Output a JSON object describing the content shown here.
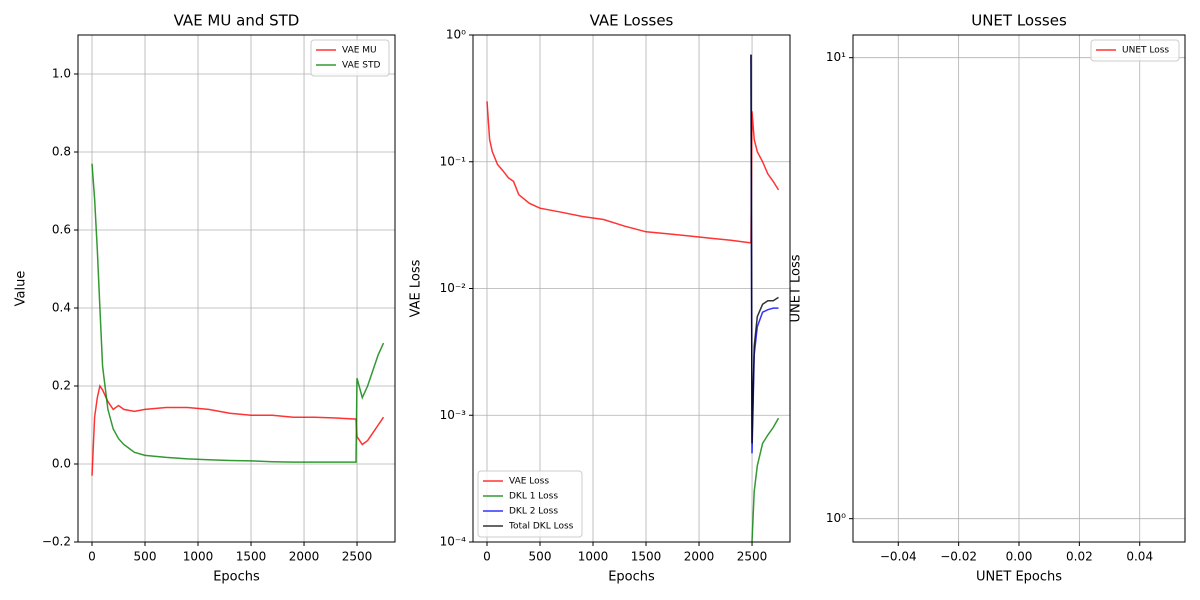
{
  "chart_data": [
    {
      "type": "line",
      "title": "VAE MU and STD",
      "x_label": "Epochs",
      "y_label": "Value",
      "x": [
        0,
        25,
        50,
        75,
        100,
        150,
        200,
        250,
        300,
        400,
        500,
        700,
        900,
        1100,
        1300,
        1500,
        1700,
        1900,
        2100,
        2300,
        2490,
        2500,
        2550,
        2600,
        2650,
        2700,
        2750
      ],
      "series": [
        {
          "name": "VAE MU",
          "color": "#ff0000",
          "values": [
            -0.03,
            0.12,
            0.17,
            0.2,
            0.19,
            0.16,
            0.14,
            0.15,
            0.14,
            0.135,
            0.14,
            0.145,
            0.145,
            0.14,
            0.13,
            0.125,
            0.125,
            0.12,
            0.12,
            0.118,
            0.115,
            0.07,
            0.05,
            0.06,
            0.08,
            0.1,
            0.12
          ]
        },
        {
          "name": "VAE STD",
          "color": "#008000",
          "values": [
            0.77,
            0.68,
            0.55,
            0.4,
            0.25,
            0.14,
            0.09,
            0.065,
            0.05,
            0.03,
            0.022,
            0.017,
            0.013,
            0.011,
            0.009,
            0.008,
            0.006,
            0.005,
            0.005,
            0.005,
            0.005,
            0.22,
            0.17,
            0.2,
            0.24,
            0.28,
            0.31
          ]
        }
      ],
      "xlim": [
        -132,
        2858
      ],
      "xticks": [
        0,
        500,
        1000,
        1500,
        2000,
        2500
      ],
      "ylim": [
        -0.2,
        1.1
      ],
      "yticks": [
        {
          "value": -0.2,
          "label": "−0.2"
        },
        {
          "value": 0,
          "label": "0.0"
        },
        {
          "value": 0.2,
          "label": "0.2"
        },
        {
          "value": 0.4,
          "label": "0.4"
        },
        {
          "value": 0.6,
          "label": "0.6"
        },
        {
          "value": 0.8,
          "label": "0.8"
        },
        {
          "value": 1,
          "label": "1.0"
        }
      ],
      "grid": true,
      "legend": "upper right"
    },
    {
      "type": "line",
      "title": "VAE Losses",
      "x_label": "Epochs",
      "y_label": "VAE Loss",
      "log_y": true,
      "x": [
        0,
        25,
        50,
        100,
        150,
        200,
        250,
        300,
        400,
        500,
        700,
        900,
        1100,
        1300,
        1500,
        1700,
        1900,
        2100,
        2300,
        2480,
        2490,
        2500,
        2520,
        2550,
        2600,
        2650,
        2700,
        2750
      ],
      "series": [
        {
          "name": "VAE Loss",
          "color": "#ff0000",
          "values": [
            0.3,
            0.15,
            0.12,
            0.095,
            0.085,
            0.075,
            0.07,
            0.055,
            0.047,
            0.043,
            0.04,
            0.037,
            0.035,
            0.031,
            0.028,
            0.027,
            0.026,
            0.025,
            0.024,
            0.023,
            0.023,
            0.25,
            0.15,
            0.12,
            0.1,
            0.08,
            0.07,
            0.06
          ]
        },
        {
          "name": "DKL 1 Loss",
          "color": "#008000",
          "values": [
            null,
            null,
            null,
            null,
            null,
            null,
            null,
            null,
            null,
            null,
            null,
            null,
            null,
            null,
            null,
            null,
            null,
            null,
            null,
            null,
            null,
            0.0001,
            0.00025,
            0.0004,
            0.0006,
            0.0007,
            0.0008,
            0.00095
          ]
        },
        {
          "name": "DKL 2 Loss",
          "color": "#0000ff",
          "values": [
            null,
            null,
            null,
            null,
            null,
            null,
            null,
            null,
            null,
            null,
            null,
            null,
            null,
            null,
            null,
            null,
            null,
            null,
            null,
            null,
            0.7,
            0.0005,
            0.003,
            0.005,
            0.0065,
            0.0068,
            0.007,
            0.007
          ]
        },
        {
          "name": "Total DKL Loss",
          "color": "#000000",
          "values": [
            null,
            null,
            null,
            null,
            null,
            null,
            null,
            null,
            null,
            null,
            null,
            null,
            null,
            null,
            null,
            null,
            null,
            null,
            null,
            null,
            0.7,
            0.0006,
            0.0035,
            0.006,
            0.0075,
            0.008,
            0.008,
            0.0085
          ]
        }
      ],
      "xlim": [
        -132,
        2858
      ],
      "xticks": [
        0,
        500,
        1000,
        1500,
        2000,
        2500
      ],
      "ylim": [
        0.0001,
        1
      ],
      "yticks": [
        {
          "value": 0.0001,
          "label": "10⁻⁴"
        },
        {
          "value": 0.001,
          "label": "10⁻³"
        },
        {
          "value": 0.01,
          "label": "10⁻²"
        },
        {
          "value": 0.1,
          "label": "10⁻¹"
        },
        {
          "value": 1,
          "label": "10⁰"
        }
      ],
      "grid": true,
      "legend": "lower left"
    },
    {
      "type": "line",
      "title": "UNET Losses",
      "x_label": "UNET Epochs",
      "y_label": "UNET Loss",
      "log_y": true,
      "x": [],
      "series": [
        {
          "name": "UNET Loss",
          "color": "#ff0000",
          "values": []
        }
      ],
      "xlim": [
        -0.055,
        0.055
      ],
      "xticks": [
        {
          "value": -0.04,
          "label": "−0.04"
        },
        {
          "value": -0.02,
          "label": "−0.02"
        },
        {
          "value": 0,
          "label": "0.00"
        },
        {
          "value": 0.02,
          "label": "0.02"
        },
        {
          "value": 0.04,
          "label": "0.04"
        }
      ],
      "ylim": [
        0.89,
        11.2
      ],
      "yticks": [
        {
          "value": 1,
          "label": "10⁰"
        },
        {
          "value": 10,
          "label": "10¹"
        }
      ],
      "grid": true,
      "legend": "upper right"
    }
  ]
}
